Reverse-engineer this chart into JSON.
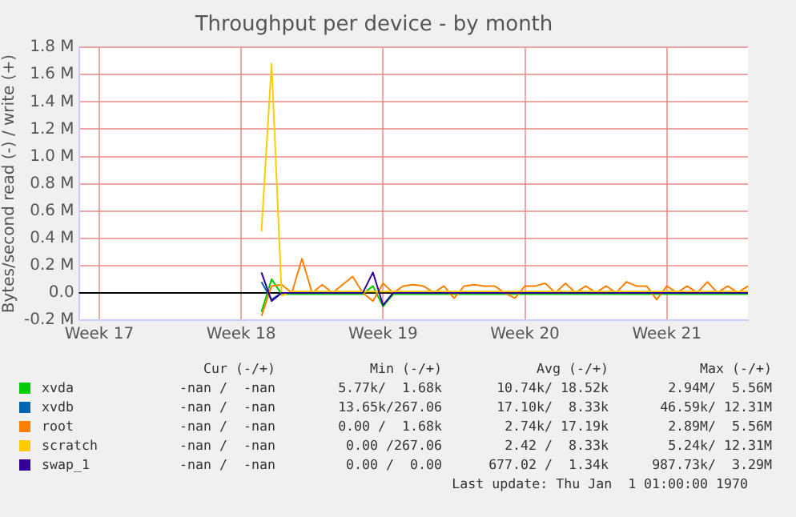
{
  "chart_data": {
    "type": "line",
    "title": "Throughput per device - by month",
    "ylabel": "Bytes/second read (-) / write (+)",
    "categories": [
      null,
      null,
      "Week 17",
      null,
      null,
      null,
      null,
      null,
      null,
      null,
      null,
      null,
      null,
      null,
      null,
      null,
      "Week 18",
      null,
      null,
      null,
      null,
      null,
      null,
      null,
      null,
      null,
      null,
      null,
      null,
      null,
      "Week 19",
      null,
      null,
      null,
      null,
      null,
      null,
      null,
      null,
      null,
      null,
      null,
      null,
      null,
      "Week 20",
      null,
      null,
      null,
      null,
      null,
      null,
      null,
      null,
      null,
      null,
      null,
      null,
      null,
      "Week 21",
      null,
      null,
      null,
      null,
      null,
      null,
      null,
      null
    ],
    "ylim": [
      -0.2,
      1.8
    ],
    "yticks": [
      {
        "value": -0.2,
        "label": "-0.2 M"
      },
      {
        "value": 0,
        "label": "0.0"
      },
      {
        "value": 0.2,
        "label": "0.2 M"
      },
      {
        "value": 0.4,
        "label": "0.4 M"
      },
      {
        "value": 0.6,
        "label": "0.6 M"
      },
      {
        "value": 0.8,
        "label": "0.8 M"
      },
      {
        "value": 1.0,
        "label": "1.0 M"
      },
      {
        "value": 1.2,
        "label": "1.2 M"
      },
      {
        "value": 1.4,
        "label": "1.4 M"
      },
      {
        "value": 1.6,
        "label": "1.6 M"
      },
      {
        "value": 1.8,
        "label": "1.8 M"
      }
    ],
    "grid": true,
    "legend": "bottom",
    "marker": "none",
    "line_style": "solid",
    "series": [
      {
        "name": "xvda",
        "color": "#00cc00",
        "values": [
          null,
          null,
          null,
          null,
          null,
          null,
          null,
          null,
          null,
          null,
          null,
          null,
          null,
          null,
          null,
          null,
          null,
          null,
          -0.14,
          0.1,
          -0.01,
          -0.01,
          -0.01,
          -0.01,
          -0.01,
          -0.01,
          -0.01,
          -0.01,
          -0.01,
          0.05,
          -0.1,
          -0.01,
          -0.01,
          -0.01,
          -0.01,
          -0.01,
          -0.01,
          -0.01,
          -0.01,
          -0.01,
          -0.01,
          -0.01,
          -0.01,
          -0.01,
          -0.01,
          -0.01,
          -0.01,
          -0.01,
          -0.01,
          -0.01,
          -0.01,
          -0.01,
          -0.01,
          -0.01,
          -0.01,
          -0.01,
          -0.01,
          -0.01,
          -0.01,
          -0.01,
          -0.01,
          -0.01,
          -0.01,
          -0.01,
          -0.01,
          -0.01,
          -0.01
        ]
      },
      {
        "name": "xvdb",
        "color": "#0066b3",
        "values": [
          null,
          null,
          null,
          null,
          null,
          null,
          null,
          null,
          null,
          null,
          null,
          null,
          null,
          null,
          null,
          null,
          null,
          null,
          0.08,
          -0.05,
          0,
          null,
          null,
          null,
          null,
          null,
          null,
          null,
          null,
          null,
          null,
          null,
          null,
          null,
          null,
          null,
          null,
          null,
          null,
          null,
          null,
          null,
          null,
          null,
          null,
          null,
          null,
          null,
          null,
          null,
          null,
          null,
          null,
          null,
          null,
          null,
          null,
          null,
          null,
          null,
          null,
          null,
          null,
          null,
          null,
          null,
          null
        ]
      },
      {
        "name": "root",
        "color": "#ff8000",
        "values": [
          null,
          null,
          null,
          null,
          null,
          null,
          null,
          null,
          null,
          null,
          null,
          null,
          null,
          null,
          null,
          null,
          null,
          null,
          -0.17,
          0.05,
          0.06,
          0,
          0.25,
          0,
          0.06,
          0,
          0.06,
          0.12,
          0,
          -0.06,
          0.07,
          0,
          0.05,
          0.06,
          0.05,
          0,
          0.05,
          -0.04,
          0.05,
          0.06,
          0.05,
          0.05,
          0,
          -0.04,
          0.05,
          0.05,
          0.07,
          0,
          0.07,
          0,
          0.05,
          0,
          0.05,
          0,
          0.08,
          0.05,
          0.05,
          -0.05,
          0.05,
          0,
          0.05,
          0,
          0.08,
          0,
          0.05,
          0,
          0.05
        ]
      },
      {
        "name": "scratch",
        "color": "#ffcc00",
        "values": [
          null,
          null,
          null,
          null,
          null,
          null,
          null,
          null,
          null,
          null,
          null,
          null,
          null,
          null,
          null,
          null,
          null,
          null,
          0.45,
          1.68,
          -0.02,
          0.01,
          0.01,
          0.01,
          0.01,
          0.01,
          0.01,
          0.01,
          0.01,
          0.01,
          0.01,
          0.01,
          0.01,
          0.01,
          0.01,
          0.01,
          0.01,
          0.01,
          0.01,
          0.01,
          0.01,
          0.01,
          0.01,
          0.01,
          0.01,
          0.01,
          0.01,
          0.01,
          0.01,
          0.01,
          0.01,
          0.01,
          0.01,
          0.01,
          0.01,
          0.01,
          0.01,
          0.01,
          0.01,
          0.01,
          0.01,
          0.01,
          0.01,
          0.01,
          0.01,
          0.01,
          0.01
        ]
      },
      {
        "name": "swap_1",
        "color": "#330099",
        "values": [
          null,
          null,
          null,
          null,
          null,
          null,
          null,
          null,
          null,
          null,
          null,
          null,
          null,
          null,
          null,
          null,
          null,
          null,
          0.15,
          -0.06,
          0,
          0,
          0,
          0,
          0,
          0,
          0,
          0,
          0,
          0.15,
          -0.09,
          0,
          0,
          0,
          0,
          0,
          0,
          0,
          0,
          0,
          0,
          0,
          0,
          0,
          0,
          0,
          0,
          0,
          0,
          0,
          0,
          0,
          0,
          0,
          0,
          0,
          0,
          0,
          0,
          0,
          0,
          0,
          0,
          0,
          0,
          0,
          0
        ]
      }
    ],
    "annotations": [
      "Cur (-/+)",
      "Min (-/+)",
      "Avg (-/+)",
      "Max (-/+)",
      "-nan /  -nan",
      "5.77k/  1.68k",
      "10.74k/ 18.52k",
      "2.94M/  5.56M",
      "-nan /  -nan",
      "13.65k/267.06",
      "17.10k/  8.33k",
      "46.59k/ 12.31M",
      "-nan /  -nan",
      "0.00 /  1.68k",
      "2.74k/ 17.19k",
      "2.89M/  5.56M",
      "-nan /  -nan",
      "0.00 /267.06",
      "2.42 /  8.33k",
      "5.24k/ 12.31M",
      "-nan /  -nan",
      "0.00 /  0.00",
      "677.02 /  1.34k",
      "987.73k/  3.29M",
      "Last update: Thu Jan  1 01:00:00 1970"
    ]
  }
}
